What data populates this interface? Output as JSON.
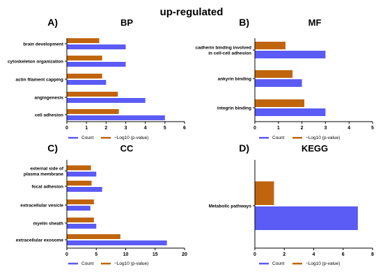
{
  "main_title": "up-regulated",
  "colors": {
    "count": "#5b5bf5",
    "log": "#c0650e"
  },
  "chart_data": [
    {
      "letter": "A)",
      "title": "BP",
      "type": "bar",
      "orientation": "horizontal",
      "categories": [
        "brain development",
        "cytoskeleton organization",
        "actin filament capping",
        "angiogenesis",
        "cell adhesion"
      ],
      "series": [
        {
          "name": "Count",
          "color": "#5b5bf5",
          "values": [
            3,
            3,
            2,
            4,
            5
          ]
        },
        {
          "name": "−Log10 (p-value)",
          "color": "#c0650e",
          "values": [
            1.65,
            1.8,
            1.8,
            2.6,
            2.65
          ]
        }
      ],
      "xlim": [
        0,
        6
      ],
      "xticks": [
        "0",
        "1",
        "2",
        "3",
        "4",
        "5",
        "6"
      ],
      "legend_position": "bottom"
    },
    {
      "letter": "B)",
      "title": "MF",
      "type": "bar",
      "orientation": "horizontal",
      "categories": [
        "cadherin binding involved|in cell-cell adhesion",
        "ankyrin binding",
        "integrin binding"
      ],
      "series": [
        {
          "name": "Count",
          "color": "#5b5bf5",
          "values": [
            3,
            2,
            3
          ]
        },
        {
          "name": "−Log10 (p-value)",
          "color": "#c0650e",
          "values": [
            1.3,
            1.6,
            2.1
          ]
        }
      ],
      "xlim": [
        0,
        5
      ],
      "xticks": [
        "0",
        "1",
        "2",
        "3",
        "4",
        "5"
      ],
      "legend_position": "bottom"
    },
    {
      "letter": "C)",
      "title": "CC",
      "type": "bar",
      "orientation": "horizontal",
      "categories": [
        "external side of|plasma membrane",
        "focal adhesion",
        "extracellular vesicle",
        "myelin sheath",
        "extracellular exosome"
      ],
      "series": [
        {
          "name": "Count",
          "color": "#5b5bf5",
          "values": [
            5,
            6,
            4,
            5,
            17
          ]
        },
        {
          "name": "−Log10 (p-value)",
          "color": "#c0650e",
          "values": [
            4.1,
            4.2,
            4.6,
            4.6,
            9.1
          ]
        }
      ],
      "xlim": [
        0,
        20
      ],
      "xticks": [
        "0",
        "5",
        "10",
        "15",
        "20"
      ],
      "legend_position": "bottom"
    },
    {
      "letter": "D)",
      "title": "KEGG",
      "type": "bar",
      "orientation": "horizontal",
      "categories": [
        "Metabolic pathways"
      ],
      "series": [
        {
          "name": "Count",
          "color": "#5b5bf5",
          "values": [
            7
          ]
        },
        {
          "name": "−Log10 (p-value)",
          "color": "#c0650e",
          "values": [
            1.3
          ]
        }
      ],
      "xlim": [
        0,
        8
      ],
      "xticks": [
        "0",
        "2",
        "4",
        "6",
        "8"
      ],
      "legend_position": "bottom"
    }
  ]
}
